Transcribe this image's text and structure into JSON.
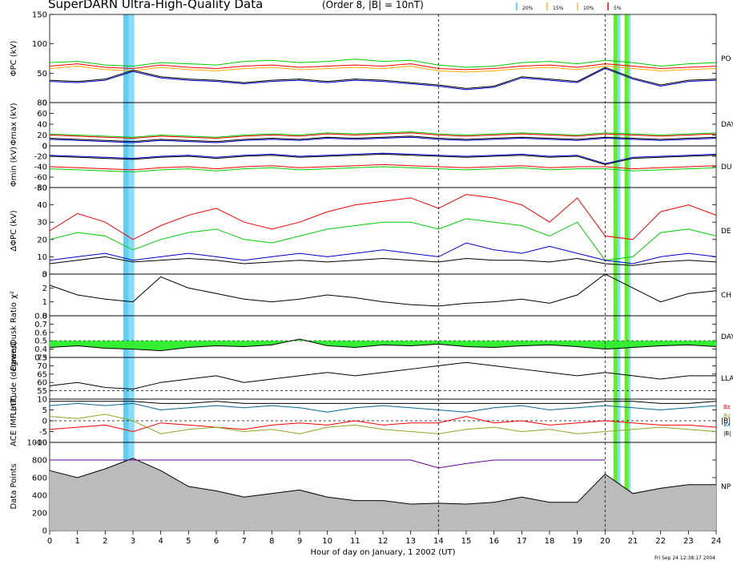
{
  "header": {
    "title": "SuperDARN Ultra-High-Quality Data",
    "subtitle": "(Order 8, |B| = 10nT)"
  },
  "legend": [
    {
      "label": "20%",
      "color": "#33ccff"
    },
    {
      "label": "15%",
      "color": "#ffaa33"
    },
    {
      "label": "10%",
      "color": "#ffbb55"
    },
    {
      "label": "5%",
      "color": "#ff0000"
    }
  ],
  "footer": {
    "x_axis_label": "Hour of day on January, 1 2002 (UT)",
    "timestamp": "Fri Sep 24 12:38:17 2004"
  },
  "chart_data": {
    "type": "line",
    "x_range": [
      0,
      24
    ],
    "x_ticks": [
      "0",
      "1",
      "2",
      "3",
      "4",
      "5",
      "6",
      "7",
      "8",
      "9",
      "10",
      "11",
      "12",
      "13",
      "14",
      "15",
      "16",
      "17",
      "18",
      "19",
      "20",
      "21",
      "22",
      "23",
      "24"
    ],
    "x_label": "Hour of day on January, 1 2002 (UT)",
    "shaded_intervals_hours": [
      {
        "start": 2.65,
        "end": 2.85,
        "color": "#66ccee"
      },
      {
        "start": 2.85,
        "end": 3.05,
        "color": "#88ddff"
      },
      {
        "start": 20.3,
        "end": 20.45,
        "color": "#66ee22"
      },
      {
        "start": 20.45,
        "end": 20.55,
        "color": "#88ddff"
      },
      {
        "start": 20.7,
        "end": 20.85,
        "color": "#66ee22"
      },
      {
        "start": 20.85,
        "end": 20.92,
        "color": "#88ddff"
      }
    ],
    "dashed_vertical_hours": [
      14,
      20
    ],
    "panels": [
      {
        "id": "phipc",
        "ylabel": "ΦPC (kV)",
        "side_label": "PO",
        "ylim": [
          0,
          150
        ],
        "yticks": [
          "0",
          "50",
          "100",
          "150"
        ],
        "dashed_y": null,
        "fill_area": false,
        "series": [
          {
            "color": "#ff0000",
            "values": [
              62,
              66,
              60,
              58,
              64,
              60,
              58,
              62,
              64,
              60,
              62,
              64,
              62,
              66,
              58,
              56,
              58,
              62,
              64,
              60,
              66,
              62,
              58,
              60,
              62
            ]
          },
          {
            "color": "#00cc00",
            "values": [
              68,
              70,
              64,
              62,
              68,
              66,
              64,
              70,
              72,
              68,
              70,
              74,
              70,
              72,
              64,
              60,
              62,
              68,
              70,
              66,
              72,
              68,
              62,
              66,
              68
            ]
          },
          {
            "color": "#ffaa00",
            "values": [
              58,
              62,
              56,
              54,
              60,
              56,
              54,
              58,
              60,
              56,
              58,
              60,
              58,
              62,
              54,
              52,
              54,
              58,
              60,
              56,
              62,
              58,
              54,
              56,
              58
            ]
          },
          {
            "color": "#000000",
            "values": [
              38,
              36,
              40,
              55,
              44,
              40,
              38,
              34,
              38,
              40,
              36,
              40,
              38,
              34,
              30,
              24,
              28,
              44,
              40,
              36,
              60,
              42,
              30,
              38,
              40
            ]
          },
          {
            "color": "#0000cc",
            "values": [
              36,
              34,
              38,
              53,
              42,
              38,
              36,
              32,
              36,
              38,
              34,
              38,
              36,
              32,
              28,
              22,
              26,
              42,
              38,
              34,
              58,
              40,
              28,
              36,
              38
            ]
          }
        ]
      },
      {
        "id": "phimax",
        "ylabel": "Φmax (kV)",
        "side_label": "DAY",
        "ylim": [
          0,
          80
        ],
        "yticks": [
          "0",
          "20",
          "40",
          "60",
          "80"
        ],
        "dashed_y": null,
        "fill_area": false,
        "series": [
          {
            "color": "#ff0000",
            "values": [
              20,
              18,
              16,
              14,
              18,
              16,
              14,
              18,
              20,
              18,
              22,
              20,
              22,
              24,
              20,
              18,
              20,
              22,
              20,
              18,
              22,
              20,
              18,
              20,
              22
            ]
          },
          {
            "color": "#00cc00",
            "values": [
              22,
              20,
              18,
              16,
              20,
              18,
              16,
              20,
              22,
              20,
              24,
              22,
              24,
              26,
              22,
              20,
              22,
              24,
              22,
              20,
              24,
              22,
              20,
              22,
              24
            ]
          },
          {
            "color": "#000000",
            "values": [
              14,
              12,
              10,
              8,
              12,
              10,
              8,
              12,
              14,
              12,
              16,
              14,
              16,
              18,
              14,
              12,
              14,
              16,
              14,
              12,
              16,
              14,
              12,
              14,
              16
            ]
          },
          {
            "color": "#0000cc",
            "values": [
              12,
              10,
              8,
              6,
              10,
              8,
              6,
              10,
              12,
              10,
              14,
              12,
              14,
              16,
              12,
              10,
              12,
              14,
              12,
              10,
              14,
              12,
              10,
              12,
              14
            ]
          }
        ]
      },
      {
        "id": "phimin",
        "ylabel": "Φmin (kV)",
        "side_label": "DU",
        "ylim": [
          -80,
          0
        ],
        "yticks": [
          "-80",
          "-60",
          "-40",
          "-20",
          "0"
        ],
        "dashed_y": null,
        "fill_area": false,
        "series": [
          {
            "color": "#ff0000",
            "values": [
              -40,
              -42,
              -44,
              -46,
              -42,
              -40,
              -44,
              -40,
              -38,
              -42,
              -40,
              -38,
              -36,
              -38,
              -40,
              -42,
              -40,
              -38,
              -42,
              -40,
              -40,
              -44,
              -42,
              -40,
              -38
            ]
          },
          {
            "color": "#00cc00",
            "values": [
              -44,
              -46,
              -48,
              -50,
              -46,
              -44,
              -48,
              -44,
              -42,
              -46,
              -44,
              -42,
              -40,
              -42,
              -44,
              -46,
              -44,
              -42,
              -46,
              -44,
              -44,
              -48,
              -46,
              -44,
              -42
            ]
          },
          {
            "color": "#000000",
            "values": [
              -20,
              -22,
              -24,
              -26,
              -22,
              -20,
              -24,
              -20,
              -18,
              -22,
              -20,
              -18,
              -16,
              -18,
              -20,
              -22,
              -20,
              -18,
              -22,
              -20,
              -36,
              -24,
              -22,
              -20,
              -18
            ]
          },
          {
            "color": "#0000cc",
            "values": [
              -18,
              -20,
              -22,
              -24,
              -20,
              -18,
              -22,
              -18,
              -16,
              -20,
              -18,
              -16,
              -14,
              -16,
              -18,
              -20,
              -18,
              -16,
              -20,
              -18,
              -34,
              -22,
              -20,
              -18,
              -16
            ]
          }
        ]
      },
      {
        "id": "dphipc",
        "ylabel": "ΔΦPC (kV)",
        "side_label": "DE",
        "ylim": [
          0,
          50
        ],
        "yticks": [
          "0",
          "10",
          "20",
          "30",
          "40",
          "50"
        ],
        "dashed_y": null,
        "fill_area": false,
        "series": [
          {
            "color": "#ff0000",
            "values": [
              25,
              35,
              30,
              20,
              28,
              34,
              38,
              30,
              26,
              30,
              36,
              40,
              42,
              44,
              38,
              46,
              44,
              40,
              30,
              44,
              22,
              20,
              36,
              40,
              34
            ]
          },
          {
            "color": "#00cc00",
            "values": [
              20,
              24,
              22,
              14,
              20,
              24,
              26,
              20,
              18,
              22,
              26,
              28,
              30,
              30,
              26,
              32,
              30,
              28,
              22,
              30,
              8,
              10,
              24,
              26,
              22
            ]
          },
          {
            "color": "#0000cc",
            "values": [
              8,
              10,
              12,
              8,
              10,
              12,
              10,
              8,
              10,
              12,
              10,
              12,
              14,
              12,
              10,
              18,
              14,
              12,
              16,
              12,
              8,
              6,
              10,
              12,
              10
            ]
          },
          {
            "color": "#000000",
            "values": [
              6,
              8,
              10,
              7,
              8,
              9,
              8,
              6,
              7,
              8,
              7,
              8,
              9,
              8,
              7,
              9,
              8,
              8,
              7,
              9,
              6,
              5,
              7,
              8,
              7
            ]
          }
        ]
      },
      {
        "id": "chisq",
        "ylabel": "χ²",
        "side_label": "CH",
        "ylim": [
          0,
          3
        ],
        "yticks": [
          "0",
          "1",
          "2",
          "3"
        ],
        "dashed_y": null,
        "fill_area": false,
        "series": [
          {
            "color": "#000000",
            "values": [
              2.2,
              1.5,
              1.2,
              1.0,
              2.8,
              2.0,
              1.6,
              1.2,
              1.0,
              1.2,
              1.5,
              1.3,
              1.0,
              0.8,
              0.7,
              0.9,
              1.0,
              1.2,
              0.9,
              1.5,
              3.0,
              2.0,
              1.0,
              1.6,
              1.8
            ]
          }
        ]
      },
      {
        "id": "ratio",
        "ylabel": "Dawn/Dusk Ratio",
        "side_label": "DAY",
        "ylim": [
          0.3,
          0.8
        ],
        "yticks": [
          "0.3",
          "0.4",
          "0.5",
          "0.6",
          "0.7",
          "0.8"
        ],
        "dashed_y": 0.5,
        "fill_area": true,
        "fill_color": "#33ee33",
        "series": [
          {
            "color": "#000000",
            "values": [
              0.42,
              0.44,
              0.41,
              0.4,
              0.38,
              0.42,
              0.44,
              0.43,
              0.45,
              0.52,
              0.44,
              0.42,
              0.45,
              0.44,
              0.46,
              0.43,
              0.42,
              0.44,
              0.45,
              0.43,
              0.4,
              0.42,
              0.44,
              0.45,
              0.43
            ]
          }
        ]
      },
      {
        "id": "latitude",
        "ylabel": "Latitude (degrees)",
        "side_label": "LLA",
        "ylim": [
          50,
          75
        ],
        "yticks": [
          "55",
          "60",
          "65",
          "70",
          "75"
        ],
        "dashed_y": 55,
        "fill_area": false,
        "series": [
          {
            "color": "#000000",
            "values": [
              58,
              60,
              57,
              56,
              60,
              62,
              64,
              60,
              62,
              64,
              66,
              64,
              66,
              68,
              70,
              72,
              70,
              68,
              66,
              64,
              66,
              64,
              62,
              64,
              64
            ]
          }
        ]
      },
      {
        "id": "imf",
        "ylabel": "ACE IMF (nT)",
        "side_label": "|B|",
        "ylim": [
          -10,
          10
        ],
        "yticks": [
          "-10",
          "-5",
          "0",
          "5",
          "10"
        ],
        "dashed_y": 0,
        "fill_area": false,
        "imf_labels": [
          "Bz",
          "By",
          "Bx",
          "|B|"
        ],
        "series": [
          {
            "color": "#006699",
            "values": [
              7,
              8,
              7,
              8,
              5,
              6,
              7,
              6,
              7,
              6,
              4,
              6,
              7,
              6,
              5,
              4,
              6,
              7,
              5,
              6,
              7,
              6,
              5,
              6,
              7
            ]
          },
          {
            "color": "#ff0000",
            "values": [
              -4,
              -3,
              -2,
              -5,
              -1,
              -2,
              -3,
              -4,
              -2,
              -1,
              -2,
              0,
              -2,
              -1,
              -1,
              2,
              -1,
              0,
              -2,
              -1,
              0,
              -1,
              -2,
              -2,
              -3
            ]
          },
          {
            "color": "#88aa22",
            "values": [
              2,
              1,
              3,
              0,
              -6,
              -4,
              -3,
              -5,
              -4,
              -6,
              -3,
              -2,
              -4,
              -5,
              -6,
              -4,
              -3,
              -5,
              -4,
              -6,
              -5,
              -4,
              -3,
              -4,
              -5
            ]
          },
          {
            "color": "#000000",
            "values": [
              9,
              9,
              9,
              9,
              8,
              8,
              9,
              8,
              8,
              8,
              8,
              8,
              8,
              8,
              8,
              8,
              8,
              8,
              8,
              8,
              9,
              9,
              8,
              8,
              9
            ]
          }
        ]
      },
      {
        "id": "points",
        "ylabel": "Data Points",
        "side_label": "NP",
        "ylim": [
          0,
          1000
        ],
        "yticks": [
          "0",
          "200",
          "400",
          "600",
          "800",
          "1000"
        ],
        "dashed_y": null,
        "fill_area": true,
        "fill_color": "#bbbbbb",
        "series": [
          {
            "color": "#000000",
            "values": [
              680,
              600,
              700,
              820,
              680,
              500,
              450,
              380,
              420,
              460,
              380,
              340,
              340,
              300,
              310,
              300,
              320,
              380,
              320,
              320,
              640,
              420,
              480,
              520,
              520
            ]
          },
          {
            "color": "#660099",
            "values": [
              800,
              800,
              800,
              800,
              800,
              800,
              800,
              800,
              800,
              800,
              800,
              800,
              800,
              800,
              710,
              760,
              800,
              800,
              800,
              800,
              800,
              null,
              null,
              null,
              null
            ]
          }
        ]
      }
    ]
  }
}
